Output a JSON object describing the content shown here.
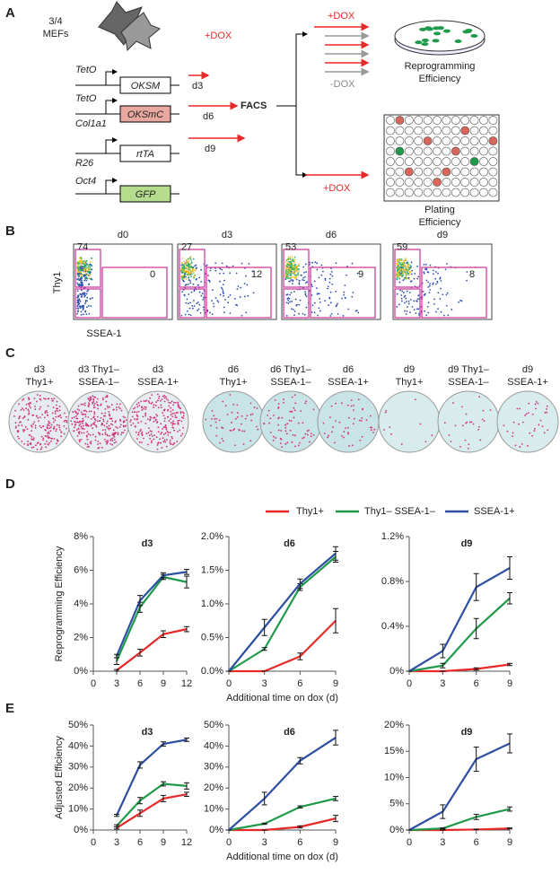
{
  "panel_labels": [
    "A",
    "B",
    "C",
    "D",
    "E"
  ],
  "diagram": {
    "cells": [
      "3/4",
      "MEFs"
    ],
    "dox": "+DOX",
    "teto1": "TetO",
    "oksm": "OKSM",
    "d3": "d3",
    "teto2": "TetO",
    "col1a1": "Col1a1",
    "oksmc": "OKSmC",
    "d6": "d6",
    "facs": "FACS",
    "rtta": "rtTA",
    "d9": "d9",
    "r26": "R26",
    "oct4": "Oct4",
    "gfp": "GFP",
    "dox_up": "+DOX",
    "nodox": "-DOX",
    "reprog": [
      "Reprogramming",
      "Efficiency"
    ],
    "dox_down": "+DOX",
    "plating": [
      "Plating",
      "Efficiency"
    ]
  },
  "flow": {
    "y_label": "Thy1",
    "x_label": "SSEA-1",
    "plots": [
      {
        "title": "d0",
        "thy1": 74,
        "ssea1": 0
      },
      {
        "title": "d3",
        "thy1": 27,
        "ssea1": 12
      },
      {
        "title": "d6",
        "thy1": 53,
        "ssea1": 9
      },
      {
        "title": "d9",
        "thy1": 59,
        "ssea1": 8
      }
    ]
  },
  "dishes": [
    [
      "d3",
      "Thy1+"
    ],
    [
      "d3 Thy1–",
      "SSEA-1–"
    ],
    [
      "d3",
      "SSEA-1+"
    ],
    [
      "d6",
      "Thy1+"
    ],
    [
      "d6 Thy1–",
      "SSEA-1–"
    ],
    [
      "d6",
      "SSEA-1+"
    ],
    [
      "d9",
      "Thy1+"
    ],
    [
      "d9 Thy1–",
      "SSEA-1–"
    ],
    [
      "d9",
      "SSEA-1+"
    ]
  ],
  "chart_data": [
    {
      "type": "line",
      "title": "d3",
      "ylabel": "Reprogramming Efficiency",
      "x": [
        3,
        6,
        9,
        12
      ],
      "xlim": [
        0,
        12
      ],
      "xticks": [
        0,
        3,
        6,
        9,
        12
      ],
      "ylim": [
        0,
        8
      ],
      "yticks": [
        {
          "value": 0,
          "label": "0%"
        },
        {
          "value": 2,
          "label": "2%"
        },
        {
          "value": 4,
          "label": "4%"
        },
        {
          "value": 6,
          "label": "6%"
        },
        {
          "value": 8,
          "label": "8%"
        }
      ],
      "series": [
        {
          "name": "Thy1+",
          "color": "#e8292a",
          "values": [
            0.05,
            1.1,
            2.2,
            2.5
          ],
          "errors": [
            0.05,
            0.2,
            0.2,
            0.15
          ]
        },
        {
          "name": "Thy1– SSEA-1–",
          "color": "#1f9a4a",
          "values": [
            0.6,
            3.8,
            5.6,
            5.3
          ],
          "errors": [
            0.2,
            0.3,
            0.15,
            0.35
          ]
        },
        {
          "name": "SSEA-1+",
          "color": "#2e4fa2",
          "values": [
            0.9,
            4.2,
            5.7,
            5.9
          ],
          "errors": [
            0.1,
            0.3,
            0.15,
            0.15
          ]
        }
      ]
    },
    {
      "type": "line",
      "title": "d6",
      "xlabel": "Additional time on dox (d)",
      "x": [
        0,
        3,
        6,
        9
      ],
      "xlim": [
        0,
        9
      ],
      "xticks": [
        0,
        3,
        6,
        9
      ],
      "ylim": [
        0,
        2
      ],
      "yticks": [
        {
          "value": 0,
          "label": "0.0%"
        },
        {
          "value": 0.5,
          "label": "0.5%"
        },
        {
          "value": 1,
          "label": "1.0%"
        },
        {
          "value": 1.5,
          "label": "1.5%"
        },
        {
          "value": 2,
          "label": "2.0%"
        }
      ],
      "series": [
        {
          "color": "#e8292a",
          "values": [
            0,
            0,
            0.22,
            0.75
          ],
          "errors": [
            0,
            0,
            0.05,
            0.18
          ]
        },
        {
          "color": "#1f9a4a",
          "values": [
            0,
            0.33,
            1.25,
            1.7
          ],
          "errors": [
            0,
            0.02,
            0.05,
            0.08
          ]
        },
        {
          "color": "#2e4fa2",
          "values": [
            0,
            0.65,
            1.3,
            1.75
          ],
          "errors": [
            0,
            0.12,
            0.07,
            0.1
          ]
        }
      ]
    },
    {
      "type": "line",
      "title": "d9",
      "x": [
        0,
        3,
        6,
        9
      ],
      "xlim": [
        0,
        9
      ],
      "xticks": [
        0,
        3,
        6,
        9
      ],
      "ylim": [
        0,
        1.2
      ],
      "yticks": [
        {
          "value": 0,
          "label": "0%"
        },
        {
          "value": 0.4,
          "label": "0.4%"
        },
        {
          "value": 0.8,
          "label": "0.8%"
        },
        {
          "value": 1.2,
          "label": "1.2%"
        }
      ],
      "series": [
        {
          "color": "#e8292a",
          "values": [
            0,
            0,
            0.02,
            0.06
          ],
          "errors": [
            0,
            0,
            0.01,
            0.01
          ]
        },
        {
          "color": "#1f9a4a",
          "values": [
            0,
            0.05,
            0.38,
            0.65
          ],
          "errors": [
            0,
            0.02,
            0.09,
            0.05
          ]
        },
        {
          "color": "#2e4fa2",
          "values": [
            0,
            0.18,
            0.75,
            0.92
          ],
          "errors": [
            0,
            0.06,
            0.12,
            0.1
          ]
        }
      ]
    },
    {
      "type": "line",
      "title": "d3",
      "ylabel": "Adjusted Efficiency",
      "x": [
        3,
        6,
        9,
        12
      ],
      "xlim": [
        0,
        12
      ],
      "xticks": [
        0,
        3,
        6,
        9,
        12
      ],
      "ylim": [
        0,
        50
      ],
      "yticks": [
        {
          "value": 0,
          "label": "0%"
        },
        {
          "value": 10,
          "label": "10%"
        },
        {
          "value": 20,
          "label": "20%"
        },
        {
          "value": 30,
          "label": "30%"
        },
        {
          "value": 40,
          "label": "40%"
        },
        {
          "value": 50,
          "label": "50%"
        }
      ],
      "series": [
        {
          "color": "#e8292a",
          "values": [
            1,
            8,
            15,
            17
          ],
          "errors": [
            0.5,
            1.5,
            1.5,
            1
          ]
        },
        {
          "color": "#1f9a4a",
          "values": [
            2,
            14,
            22,
            21
          ],
          "errors": [
            0.5,
            1.5,
            1,
            1.5
          ]
        },
        {
          "color": "#2e4fa2",
          "values": [
            7,
            31,
            41,
            43
          ],
          "errors": [
            0.5,
            1.5,
            1,
            0.8
          ]
        }
      ]
    },
    {
      "type": "line",
      "title": "d6",
      "xlabel": "Additional time on dox (d)",
      "x": [
        0,
        3,
        6,
        9
      ],
      "xlim": [
        0,
        9
      ],
      "xticks": [
        0,
        3,
        6,
        9
      ],
      "ylim": [
        0,
        50
      ],
      "yticks": [
        {
          "value": 0,
          "label": "0%"
        },
        {
          "value": 10,
          "label": "10%"
        },
        {
          "value": 20,
          "label": "20%"
        },
        {
          "value": 30,
          "label": "30%"
        },
        {
          "value": 40,
          "label": "40%"
        },
        {
          "value": 50,
          "label": "50%"
        }
      ],
      "series": [
        {
          "color": "#e8292a",
          "values": [
            0,
            0,
            1.5,
            5.5
          ],
          "errors": [
            0,
            0,
            0.5,
            1.5
          ]
        },
        {
          "color": "#1f9a4a",
          "values": [
            0,
            3,
            11,
            15
          ],
          "errors": [
            0,
            0.3,
            0.5,
            1
          ]
        },
        {
          "color": "#2e4fa2",
          "values": [
            0,
            15,
            33,
            44
          ],
          "errors": [
            0,
            3,
            1.5,
            3.5
          ]
        }
      ]
    },
    {
      "type": "line",
      "title": "d9",
      "x": [
        0,
        3,
        6,
        9
      ],
      "xlim": [
        0,
        9
      ],
      "xticks": [
        0,
        3,
        6,
        9
      ],
      "ylim": [
        0,
        20
      ],
      "yticks": [
        {
          "value": 0,
          "label": "0%"
        },
        {
          "value": 5,
          "label": "5%"
        },
        {
          "value": 10,
          "label": "10%"
        },
        {
          "value": 15,
          "label": "15%"
        },
        {
          "value": 20,
          "label": "20%"
        }
      ],
      "series": [
        {
          "color": "#e8292a",
          "values": [
            0,
            0,
            0.1,
            0.3
          ],
          "errors": [
            0,
            0,
            0.05,
            0.1
          ]
        },
        {
          "color": "#1f9a4a",
          "values": [
            0,
            0.3,
            2.5,
            4
          ],
          "errors": [
            0,
            0.1,
            0.5,
            0.4
          ]
        },
        {
          "color": "#2e4fa2",
          "values": [
            0,
            3.5,
            13.5,
            16.5
          ],
          "errors": [
            0,
            1.3,
            2.3,
            1.8
          ]
        }
      ]
    }
  ]
}
